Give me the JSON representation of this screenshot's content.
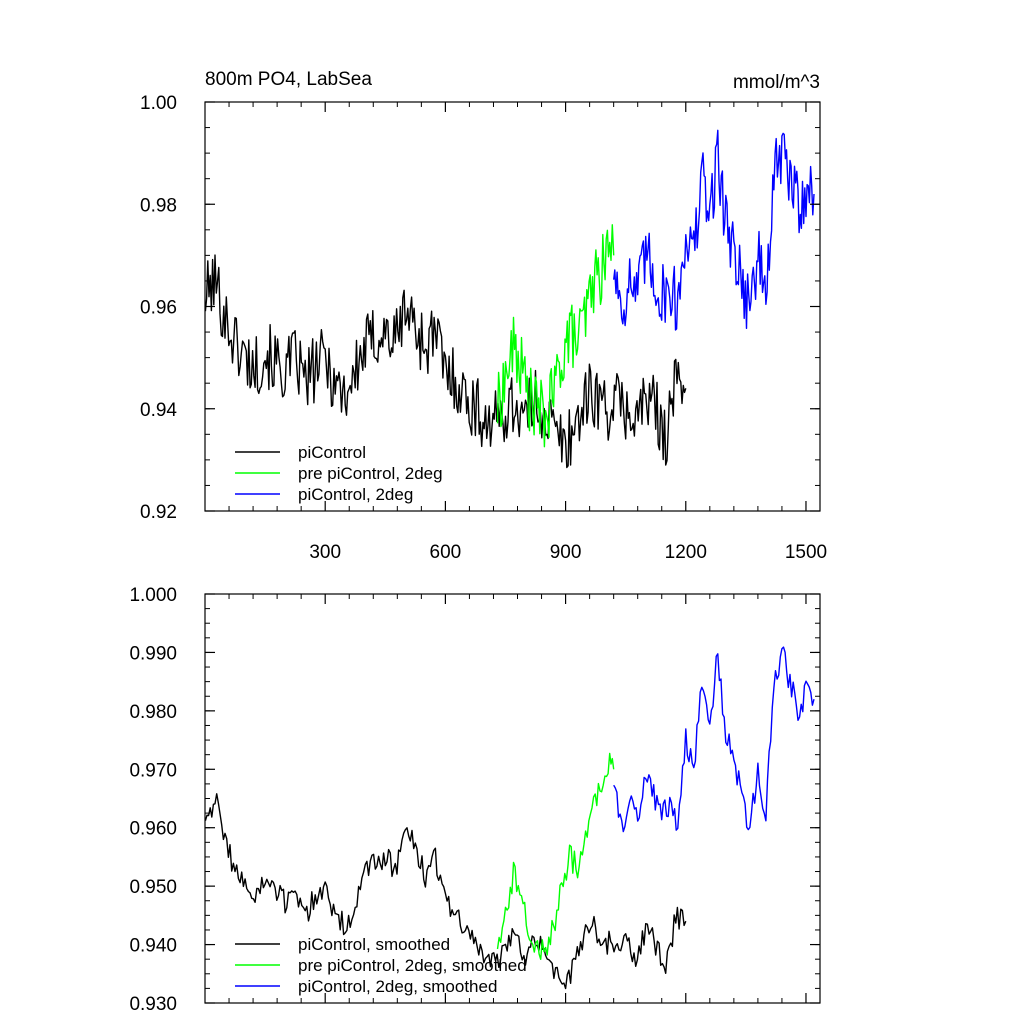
{
  "chart_data": [
    {
      "type": "line",
      "title": "800m PO4, LabSea",
      "units": "mmol/m^3",
      "xlim": [
        0,
        1535
      ],
      "ylim": [
        0.92,
        1.0
      ],
      "xticks": [
        300,
        600,
        900,
        1200,
        1500
      ],
      "xtick_labels": [
        "300",
        "600",
        "900",
        "1200",
        "1500"
      ],
      "yticks": [
        0.92,
        0.94,
        0.96,
        0.98,
        1.0
      ],
      "ytick_labels": [
        "0.92",
        "0.94",
        "0.96",
        "0.98",
        "1.00"
      ],
      "legend_position": "bottom-left",
      "colors": {
        "piControl": "#000000",
        "pre": "#00ff00",
        "twodeg": "#0000ff"
      },
      "series": [
        {
          "name": "piControl",
          "color": "#000000",
          "x": [
            1,
            25,
            50,
            75,
            100,
            125,
            150,
            175,
            200,
            225,
            250,
            275,
            300,
            325,
            350,
            375,
            400,
            425,
            450,
            475,
            500,
            525,
            550,
            575,
            600,
            625,
            650,
            675,
            700,
            725,
            750,
            775,
            800,
            825,
            850,
            875,
            900,
            925,
            950,
            975,
            1000,
            1025,
            1050,
            1075,
            1100,
            1125,
            1150,
            1175,
            1200
          ],
          "y": [
            0.962,
            0.965,
            0.958,
            0.953,
            0.95,
            0.948,
            0.951,
            0.949,
            0.947,
            0.95,
            0.945,
            0.948,
            0.95,
            0.945,
            0.943,
            0.947,
            0.952,
            0.954,
            0.955,
            0.953,
            0.96,
            0.956,
            0.952,
            0.955,
            0.947,
            0.946,
            0.942,
            0.94,
            0.938,
            0.937,
            0.94,
            0.941,
            0.938,
            0.942,
            0.939,
            0.935,
            0.933,
            0.937,
            0.942,
            0.943,
            0.94,
            0.941,
            0.94,
            0.938,
            0.942,
            0.94,
            0.935,
            0.945,
            0.944
          ]
        },
        {
          "name": "pre piControl, 2deg",
          "color": "#00ff00",
          "x": [
            730,
            750,
            770,
            790,
            810,
            830,
            850,
            870,
            890,
            910,
            930,
            950,
            970,
            990,
            1010,
            1020
          ],
          "y": [
            0.94,
            0.946,
            0.952,
            0.948,
            0.942,
            0.94,
            0.938,
            0.943,
            0.95,
            0.955,
            0.953,
            0.958,
            0.965,
            0.967,
            0.972,
            0.97
          ]
        },
        {
          "name": "piControl, 2deg",
          "color": "#0000ff",
          "x": [
            1020,
            1040,
            1060,
            1080,
            1100,
            1120,
            1140,
            1160,
            1180,
            1200,
            1220,
            1240,
            1260,
            1280,
            1300,
            1320,
            1340,
            1360,
            1380,
            1400,
            1420,
            1440,
            1460,
            1480,
            1500,
            1520
          ],
          "y": [
            0.968,
            0.96,
            0.965,
            0.962,
            0.97,
            0.966,
            0.962,
            0.964,
            0.96,
            0.975,
            0.97,
            0.985,
            0.978,
            0.99,
            0.976,
            0.972,
            0.965,
            0.96,
            0.97,
            0.962,
            0.985,
            0.99,
            0.985,
            0.98,
            0.983,
            0.982
          ]
        }
      ]
    },
    {
      "type": "line",
      "title": "",
      "xlim": [
        0,
        1535
      ],
      "ylim": [
        0.93,
        1.0
      ],
      "yticks": [
        0.93,
        0.94,
        0.95,
        0.96,
        0.97,
        0.98,
        0.99,
        1.0
      ],
      "ytick_labels": [
        "0.930",
        "0.940",
        "0.950",
        "0.960",
        "0.970",
        "0.980",
        "0.990",
        "1.000"
      ],
      "legend_position": "bottom-left",
      "series": [
        {
          "name": "piControl, smoothed",
          "color": "#000000",
          "x": [
            1,
            25,
            50,
            75,
            100,
            125,
            150,
            175,
            200,
            225,
            250,
            275,
            300,
            325,
            350,
            375,
            400,
            425,
            450,
            475,
            500,
            525,
            550,
            575,
            600,
            625,
            650,
            675,
            700,
            725,
            750,
            775,
            800,
            825,
            850,
            875,
            900,
            925,
            950,
            975,
            1000,
            1025,
            1050,
            1075,
            1100,
            1125,
            1150,
            1175,
            1200
          ],
          "y": [
            0.962,
            0.965,
            0.958,
            0.953,
            0.95,
            0.948,
            0.951,
            0.949,
            0.947,
            0.95,
            0.945,
            0.948,
            0.95,
            0.945,
            0.943,
            0.947,
            0.952,
            0.954,
            0.955,
            0.953,
            0.96,
            0.956,
            0.952,
            0.955,
            0.947,
            0.946,
            0.942,
            0.94,
            0.938,
            0.937,
            0.94,
            0.941,
            0.938,
            0.942,
            0.939,
            0.935,
            0.933,
            0.937,
            0.942,
            0.943,
            0.94,
            0.941,
            0.94,
            0.938,
            0.942,
            0.94,
            0.935,
            0.945,
            0.944
          ]
        },
        {
          "name": "pre piControl, 2deg, smoothed",
          "color": "#00ff00",
          "x": [
            730,
            750,
            770,
            790,
            810,
            830,
            850,
            870,
            890,
            910,
            930,
            950,
            970,
            990,
            1010,
            1020
          ],
          "y": [
            0.94,
            0.946,
            0.952,
            0.948,
            0.942,
            0.94,
            0.938,
            0.943,
            0.95,
            0.955,
            0.953,
            0.958,
            0.965,
            0.967,
            0.972,
            0.97
          ]
        },
        {
          "name": "piControl, 2deg, smoothed",
          "color": "#0000ff",
          "x": [
            1020,
            1040,
            1060,
            1080,
            1100,
            1120,
            1140,
            1160,
            1180,
            1200,
            1220,
            1240,
            1260,
            1280,
            1300,
            1320,
            1340,
            1360,
            1380,
            1400,
            1420,
            1440,
            1460,
            1480,
            1500,
            1520
          ],
          "y": [
            0.968,
            0.96,
            0.965,
            0.962,
            0.97,
            0.966,
            0.962,
            0.964,
            0.96,
            0.975,
            0.97,
            0.985,
            0.978,
            0.99,
            0.976,
            0.972,
            0.965,
            0.96,
            0.97,
            0.962,
            0.985,
            0.99,
            0.985,
            0.98,
            0.983,
            0.982
          ]
        }
      ]
    }
  ]
}
